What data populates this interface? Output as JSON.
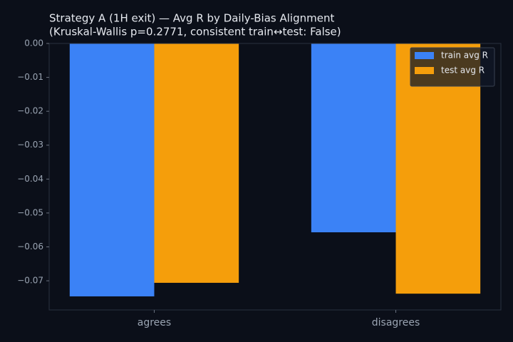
{
  "chart_data": {
    "type": "bar",
    "title": "Strategy A (1H exit) — Avg R by Daily-Bias Alignment",
    "subtitle": "(Kruskal-Wallis p=0.2771, consistent train↔test: False)",
    "categories": [
      "agrees",
      "disagrees"
    ],
    "series": [
      {
        "name": "train avg R",
        "color": "#3b82f6",
        "values": [
          -0.0746,
          -0.0557
        ]
      },
      {
        "name": "test avg R",
        "color": "#f59e0b",
        "values": [
          -0.0706,
          -0.0738
        ]
      }
    ],
    "ylim": [
      0,
      -0.0786
    ],
    "yticks": [
      {
        "value": 0,
        "label": "0.00"
      },
      {
        "value": -0.01,
        "label": "−0.01"
      },
      {
        "value": -0.02,
        "label": "−0.02"
      },
      {
        "value": -0.03,
        "label": "−0.03"
      },
      {
        "value": -0.04,
        "label": "−0.04"
      },
      {
        "value": -0.05,
        "label": "−0.05"
      },
      {
        "value": -0.06,
        "label": "−0.06"
      },
      {
        "value": -0.07,
        "label": "−0.07"
      }
    ],
    "grid": false,
    "legend": "upper-right"
  }
}
